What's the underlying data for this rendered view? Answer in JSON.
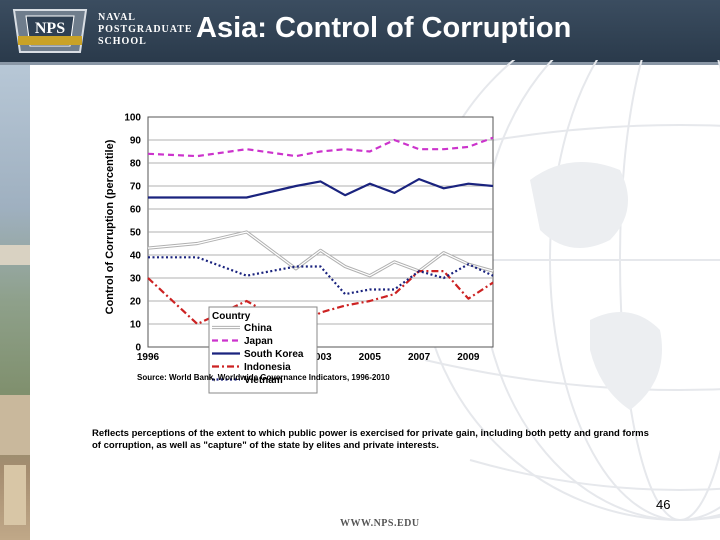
{
  "header": {
    "school_line1": "NAVAL",
    "school_line2": "POSTGRADUATE",
    "school_line3": "SCHOOL",
    "title": "Asia: Control of Corruption",
    "logo_text": "NPS",
    "bg_color": "#2f4053"
  },
  "slide": {
    "source": "Source: World Bank, Worldwide Governance Indicators, 1996-2010",
    "description": "Reflects perceptions of the extent to which public power is exercised for private gain, including both petty and grand forms of corruption, as well as \"capture\" of the state by elites and private interests.",
    "page_number": "46",
    "footer_url": "WWW.NPS.EDU"
  },
  "chart_data": {
    "type": "line",
    "ylabel": "Control of Corruption (percentile)",
    "xlabel": "",
    "ylim": [
      0,
      100
    ],
    "xlim": [
      1996,
      2010
    ],
    "y_ticks": [
      "0",
      "10",
      "20",
      "30",
      "40",
      "50",
      "60",
      "70",
      "80",
      "90",
      "100"
    ],
    "x_ticks": [
      "1996",
      "2000",
      "2003",
      "2005",
      "2007",
      "2009"
    ],
    "grid": "horizontal",
    "legend_title": "Country",
    "legend_position": "bottom-right",
    "x": [
      1996,
      1998,
      2000,
      2002,
      2003,
      2004,
      2005,
      2006,
      2007,
      2008,
      2009,
      2010
    ],
    "series": [
      {
        "name": "China",
        "color": "#b0b0b0",
        "style": "double",
        "values": [
          43,
          45,
          50,
          34,
          42,
          35,
          31,
          37,
          33,
          41,
          36,
          33
        ]
      },
      {
        "name": "Japan",
        "color": "#cc33cc",
        "style": "dashed",
        "values": [
          84,
          83,
          86,
          83,
          85,
          86,
          85,
          90,
          86,
          86,
          87,
          91
        ]
      },
      {
        "name": "South Korea",
        "color": "#1a237e",
        "style": "solid",
        "values": [
          65,
          65,
          65,
          70,
          72,
          66,
          71,
          67,
          73,
          69,
          71,
          70
        ]
      },
      {
        "name": "Indonesia",
        "color": "#cc2222",
        "style": "dashdot",
        "values": [
          30,
          10,
          20,
          8,
          15,
          18,
          20,
          23,
          33,
          33,
          21,
          28
        ]
      },
      {
        "name": "Vietnam",
        "color": "#1a237e",
        "style": "dotted",
        "values": [
          39,
          39,
          31,
          35,
          35,
          23,
          25,
          25,
          33,
          30,
          36,
          31
        ]
      }
    ]
  }
}
